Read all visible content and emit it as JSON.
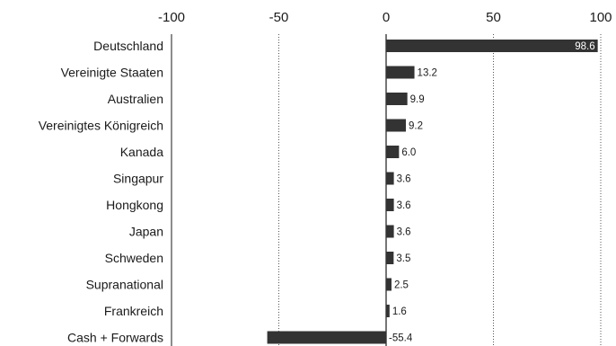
{
  "chart_data": {
    "type": "bar",
    "orientation": "horizontal",
    "categories": [
      "Deutschland",
      "Vereinigte Staaten",
      "Australien",
      "Vereinigtes Königreich",
      "Kanada",
      "Singapur",
      "Hongkong",
      "Japan",
      "Schweden",
      "Supranational",
      "Frankreich",
      "Cash + Forwards"
    ],
    "values": [
      98.6,
      13.2,
      9.9,
      9.2,
      6.0,
      3.6,
      3.6,
      3.6,
      3.5,
      2.5,
      1.6,
      -55.4
    ],
    "value_labels": [
      "98.6",
      "13.2",
      "9.9",
      "9.2",
      "6.0",
      "3.6",
      "3.6",
      "3.6",
      "3.5",
      "2.5",
      "1.6",
      "-55.4"
    ],
    "xlim": [
      -100,
      100
    ],
    "xticks": [
      "-100",
      "-50",
      "0",
      "50",
      "100"
    ],
    "tick_values": [
      -100,
      -50,
      0,
      50,
      100
    ],
    "xaxis_position": "top",
    "grid": "vertical dotted",
    "colors": {
      "bar": "#333333",
      "grid": "#555555",
      "axis": "#1a1a1a"
    }
  }
}
